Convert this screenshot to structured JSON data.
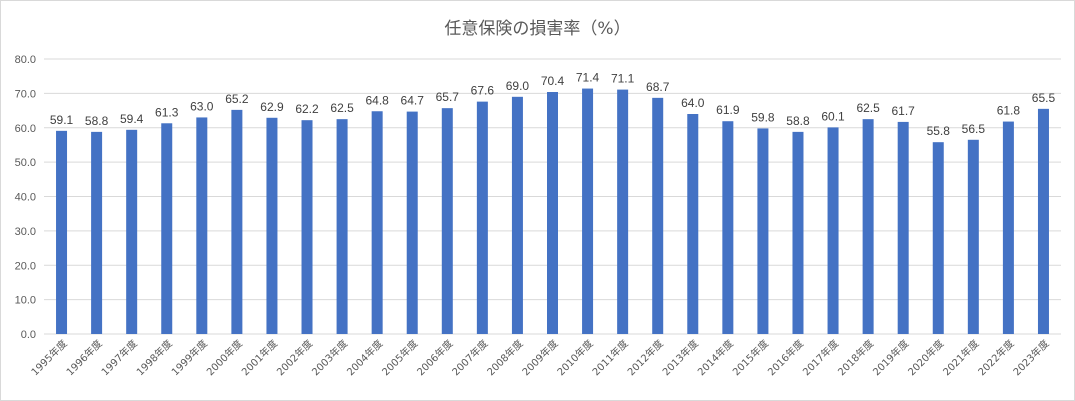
{
  "chart_data": {
    "type": "bar",
    "title": "任意保険の損害率（%）",
    "categories": [
      "1995年度",
      "1996年度",
      "1997年度",
      "1998年度",
      "1999年度",
      "2000年度",
      "2001年度",
      "2002年度",
      "2003年度",
      "2004年度",
      "2005年度",
      "2006年度",
      "2007年度",
      "2008年度",
      "2009年度",
      "2010年度",
      "2011年度",
      "2012年度",
      "2013年度",
      "2014年度",
      "2015年度",
      "2016年度",
      "2017年度",
      "2018年度",
      "2019年度",
      "2020年度",
      "2021年度",
      "2022年度",
      "2023年度"
    ],
    "values": [
      59.1,
      58.8,
      59.4,
      61.3,
      63.0,
      65.2,
      62.9,
      62.2,
      62.5,
      64.8,
      64.7,
      65.7,
      67.6,
      69.0,
      70.4,
      71.4,
      71.1,
      68.7,
      64.0,
      61.9,
      59.8,
      58.8,
      60.1,
      62.5,
      61.7,
      55.8,
      56.5,
      61.8,
      65.5
    ],
    "data_labels": [
      "59.1",
      "58.8",
      "59.4",
      "61.3",
      "63.0",
      "65.2",
      "62.9",
      "62.2",
      "62.5",
      "64.8",
      "64.7",
      "65.7",
      "67.6",
      "69.0",
      "70.4",
      "71.4",
      "71.1",
      "68.7",
      "64.0",
      "61.9",
      "59.8",
      "58.8",
      "60.1",
      "62.5",
      "61.7",
      "55.8",
      "56.5",
      "61.8",
      "65.5"
    ],
    "yticks": [
      "0.0",
      "10.0",
      "20.0",
      "30.0",
      "40.0",
      "50.0",
      "60.0",
      "70.0",
      "80.0"
    ],
    "ylim": [
      0,
      80
    ],
    "grid": true,
    "legend": "none",
    "bar_color": "#4472c4",
    "grid_color": "#d9d9d9"
  }
}
